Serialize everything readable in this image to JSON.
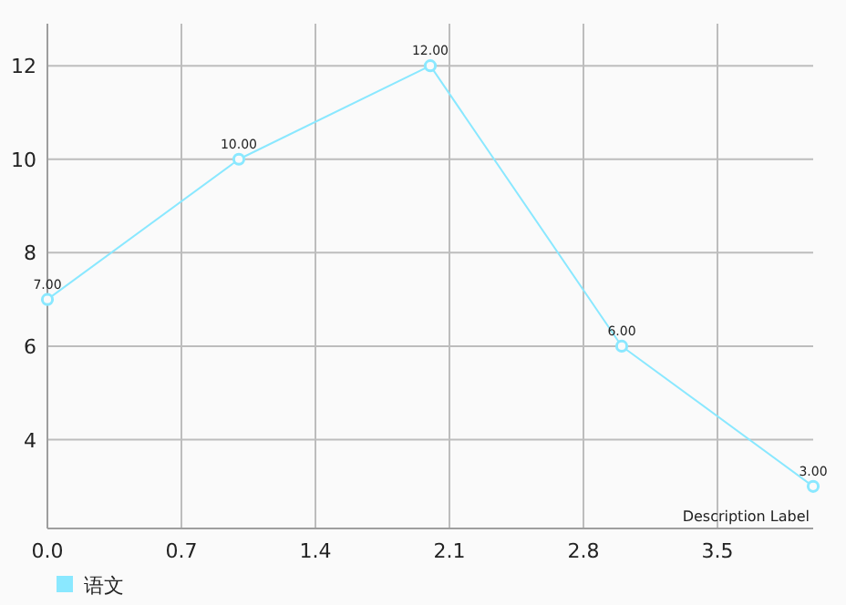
{
  "chart_data": {
    "type": "line",
    "x": [
      0,
      1,
      2,
      3,
      4
    ],
    "series": [
      {
        "name": "语文",
        "color": "#8ae8ff",
        "values": [
          7,
          10,
          12,
          6,
          3
        ],
        "value_labels": [
          "7.00",
          "10.00",
          "12.00",
          "6.00",
          "3.00"
        ]
      }
    ],
    "xlim": [
      0,
      4
    ],
    "ylim": [
      2.1,
      12.9
    ],
    "xticks": [
      {
        "value": 0,
        "label": "0.0"
      },
      0.7,
      1.4,
      2.1,
      2.8,
      3.5
    ],
    "yticks": [
      4,
      6,
      8,
      10,
      12
    ],
    "grid": true,
    "legend": "bottom left",
    "marker": "circle",
    "annotations": [
      "Description Label"
    ]
  }
}
